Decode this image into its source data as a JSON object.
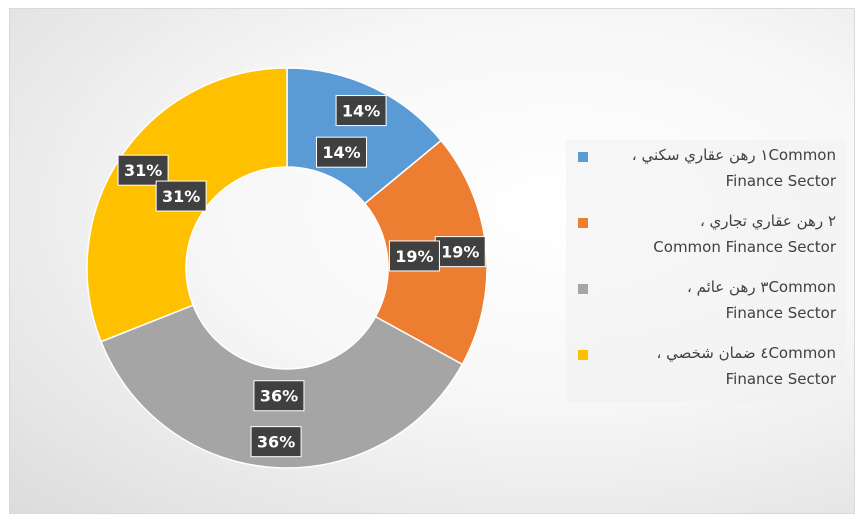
{
  "chart_data": {
    "type": "doughnut",
    "categories": [
      "١ رهن عقاري سكني ، Common Finance Sector",
      "٢ رهن عقاري تجاري ، Common Finance Sector",
      "٣ رهن عائم ، Common Finance Sector",
      "٤ ضمان شخصي ، Common Finance Sector"
    ],
    "values": [
      14,
      19,
      36,
      31
    ],
    "series": [
      {
        "values": [
          14,
          19,
          36,
          31
        ],
        "labels": [
          "14%",
          "19%",
          "36%",
          "31%"
        ]
      },
      {
        "values": [
          14,
          19,
          36,
          31
        ],
        "labels": [
          "14%",
          "19%",
          "36%",
          "31%"
        ]
      }
    ],
    "colors": [
      "#5B9BD5",
      "#ED7D31",
      "#A5A5A5",
      "#FFC000"
    ],
    "legend_position": "right",
    "title": ""
  },
  "legend": {
    "items": [
      {
        "line1_ar": "١ رهن عقاري سكني ، ",
        "line1_en": "Common",
        "line2": "Finance Sector",
        "color": "#5B9BD5"
      },
      {
        "line1_ar": "٢ رهن عقاري تجاري ، ",
        "line1_en": "",
        "line2": "Common Finance Sector",
        "color": "#ED7D31"
      },
      {
        "line1_ar": "٣ رهن عائم ، ",
        "line1_en": "Common",
        "line2": "Finance Sector",
        "color": "#A5A5A5"
      },
      {
        "line1_ar": "٤ ضمان شخصي ، ",
        "line1_en": "Common",
        "line2": "Finance Sector",
        "color": "#FFC000"
      }
    ]
  }
}
